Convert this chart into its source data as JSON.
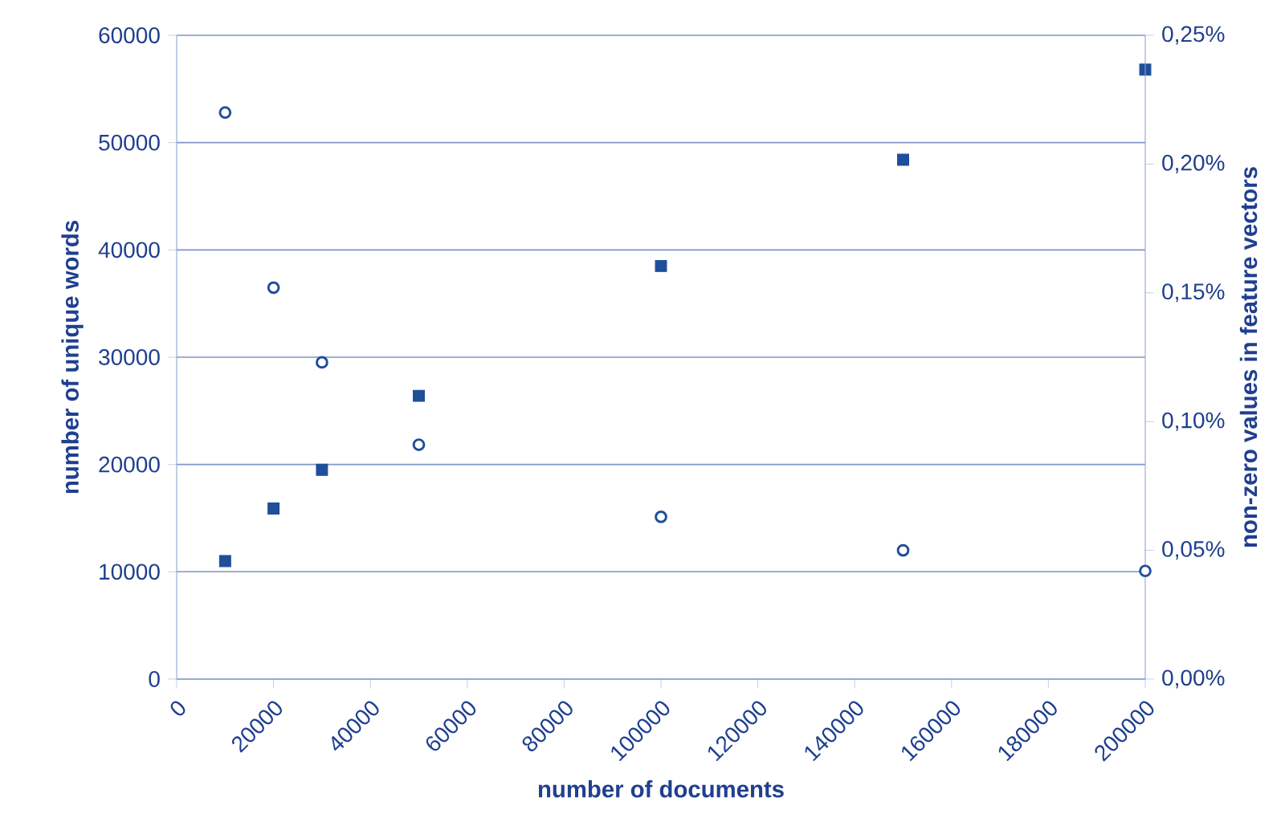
{
  "chart_data": {
    "type": "scatter",
    "xlabel": "number of documents",
    "ylabel": "number of unique words",
    "y2label": "non-zero values in feature vectors",
    "x": [
      10000,
      20000,
      30000,
      50000,
      100000,
      150000,
      200000
    ],
    "series": [
      {
        "color": "#1f4e9a",
        "marker": "square",
        "values": [
          11000,
          15900,
          19500,
          26400,
          38500,
          48400,
          56800
        ]
      },
      {
        "color": "#1f4e9a",
        "marker": "circle",
        "axis": "y2",
        "values": [
          0.22,
          0.152,
          0.123,
          0.091,
          0.063,
          0.05,
          0.042
        ]
      }
    ],
    "xlim": [
      0,
      200000
    ],
    "xticks": [
      0,
      20000,
      40000,
      60000,
      80000,
      100000,
      120000,
      140000,
      160000,
      180000,
      200000
    ],
    "ylim": [
      0,
      60000
    ],
    "yticks": [
      0,
      10000,
      20000,
      30000,
      40000,
      50000,
      60000
    ],
    "y2lim": [
      0,
      0.25
    ],
    "y2ticks": [
      {
        "value": 0,
        "label": "0,00%"
      },
      {
        "value": 0.05,
        "label": "0,05%"
      },
      {
        "value": 0.1,
        "label": "0,10%"
      },
      {
        "value": 0.15,
        "label": "0,15%"
      },
      {
        "value": 0.2,
        "label": "0,20%"
      },
      {
        "value": 0.25,
        "label": "0,25%"
      }
    ],
    "grid": "y"
  }
}
